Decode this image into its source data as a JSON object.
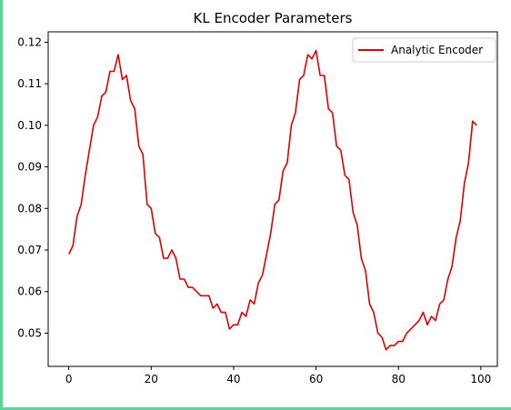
{
  "chart_data": {
    "type": "line",
    "title": "KL Encoder Parameters",
    "xlabel": "",
    "ylabel": "",
    "xlim": [
      -5,
      104
    ],
    "ylim": [
      0.042,
      0.1225
    ],
    "x_ticks": [
      0,
      20,
      40,
      60,
      80,
      100
    ],
    "y_ticks": [
      0.05,
      0.06,
      0.07,
      0.08,
      0.09,
      0.1,
      0.11,
      0.12
    ],
    "x_tick_labels": [
      "0",
      "20",
      "40",
      "60",
      "80",
      "100"
    ],
    "y_tick_labels": [
      "0.05",
      "0.06",
      "0.07",
      "0.08",
      "0.09",
      "0.10",
      "0.11",
      "0.12"
    ],
    "grid": false,
    "legend_position": "top-right",
    "series": [
      {
        "name": "Analytic Encoder",
        "color": "#e00000",
        "x": [
          0,
          1,
          2,
          3,
          4,
          5,
          6,
          7,
          8,
          9,
          10,
          11,
          12,
          13,
          14,
          15,
          16,
          17,
          18,
          19,
          20,
          21,
          22,
          23,
          24,
          25,
          26,
          27,
          28,
          29,
          30,
          31,
          32,
          33,
          34,
          35,
          36,
          37,
          38,
          39,
          40,
          41,
          42,
          43,
          44,
          45,
          46,
          47,
          48,
          49,
          50,
          51,
          52,
          53,
          54,
          55,
          56,
          57,
          58,
          59,
          60,
          61,
          62,
          63,
          64,
          65,
          66,
          67,
          68,
          69,
          70,
          71,
          72,
          73,
          74,
          75,
          76,
          77,
          78,
          79,
          80,
          81,
          82,
          83,
          84,
          85,
          86,
          87,
          88,
          89,
          90,
          91,
          92,
          93,
          94,
          95,
          96,
          97,
          98,
          99
        ],
        "values": [
          0.069,
          0.071,
          0.078,
          0.081,
          0.088,
          0.094,
          0.1,
          0.102,
          0.107,
          0.108,
          0.113,
          0.113,
          0.117,
          0.111,
          0.112,
          0.106,
          0.104,
          0.095,
          0.093,
          0.081,
          0.08,
          0.074,
          0.073,
          0.068,
          0.068,
          0.07,
          0.068,
          0.063,
          0.063,
          0.061,
          0.061,
          0.06,
          0.059,
          0.059,
          0.059,
          0.056,
          0.057,
          0.055,
          0.055,
          0.051,
          0.052,
          0.052,
          0.055,
          0.054,
          0.058,
          0.057,
          0.062,
          0.064,
          0.069,
          0.074,
          0.081,
          0.082,
          0.089,
          0.091,
          0.1,
          0.103,
          0.111,
          0.112,
          0.117,
          0.116,
          0.118,
          0.112,
          0.112,
          0.104,
          0.103,
          0.095,
          0.094,
          0.088,
          0.087,
          0.079,
          0.076,
          0.068,
          0.065,
          0.057,
          0.055,
          0.05,
          0.049,
          0.046,
          0.047,
          0.047,
          0.048,
          0.048,
          0.05,
          0.051,
          0.052,
          0.053,
          0.055,
          0.052,
          0.054,
          0.053,
          0.057,
          0.058,
          0.063,
          0.066,
          0.073,
          0.077,
          0.086,
          0.091,
          0.101,
          0.1
        ]
      }
    ]
  }
}
